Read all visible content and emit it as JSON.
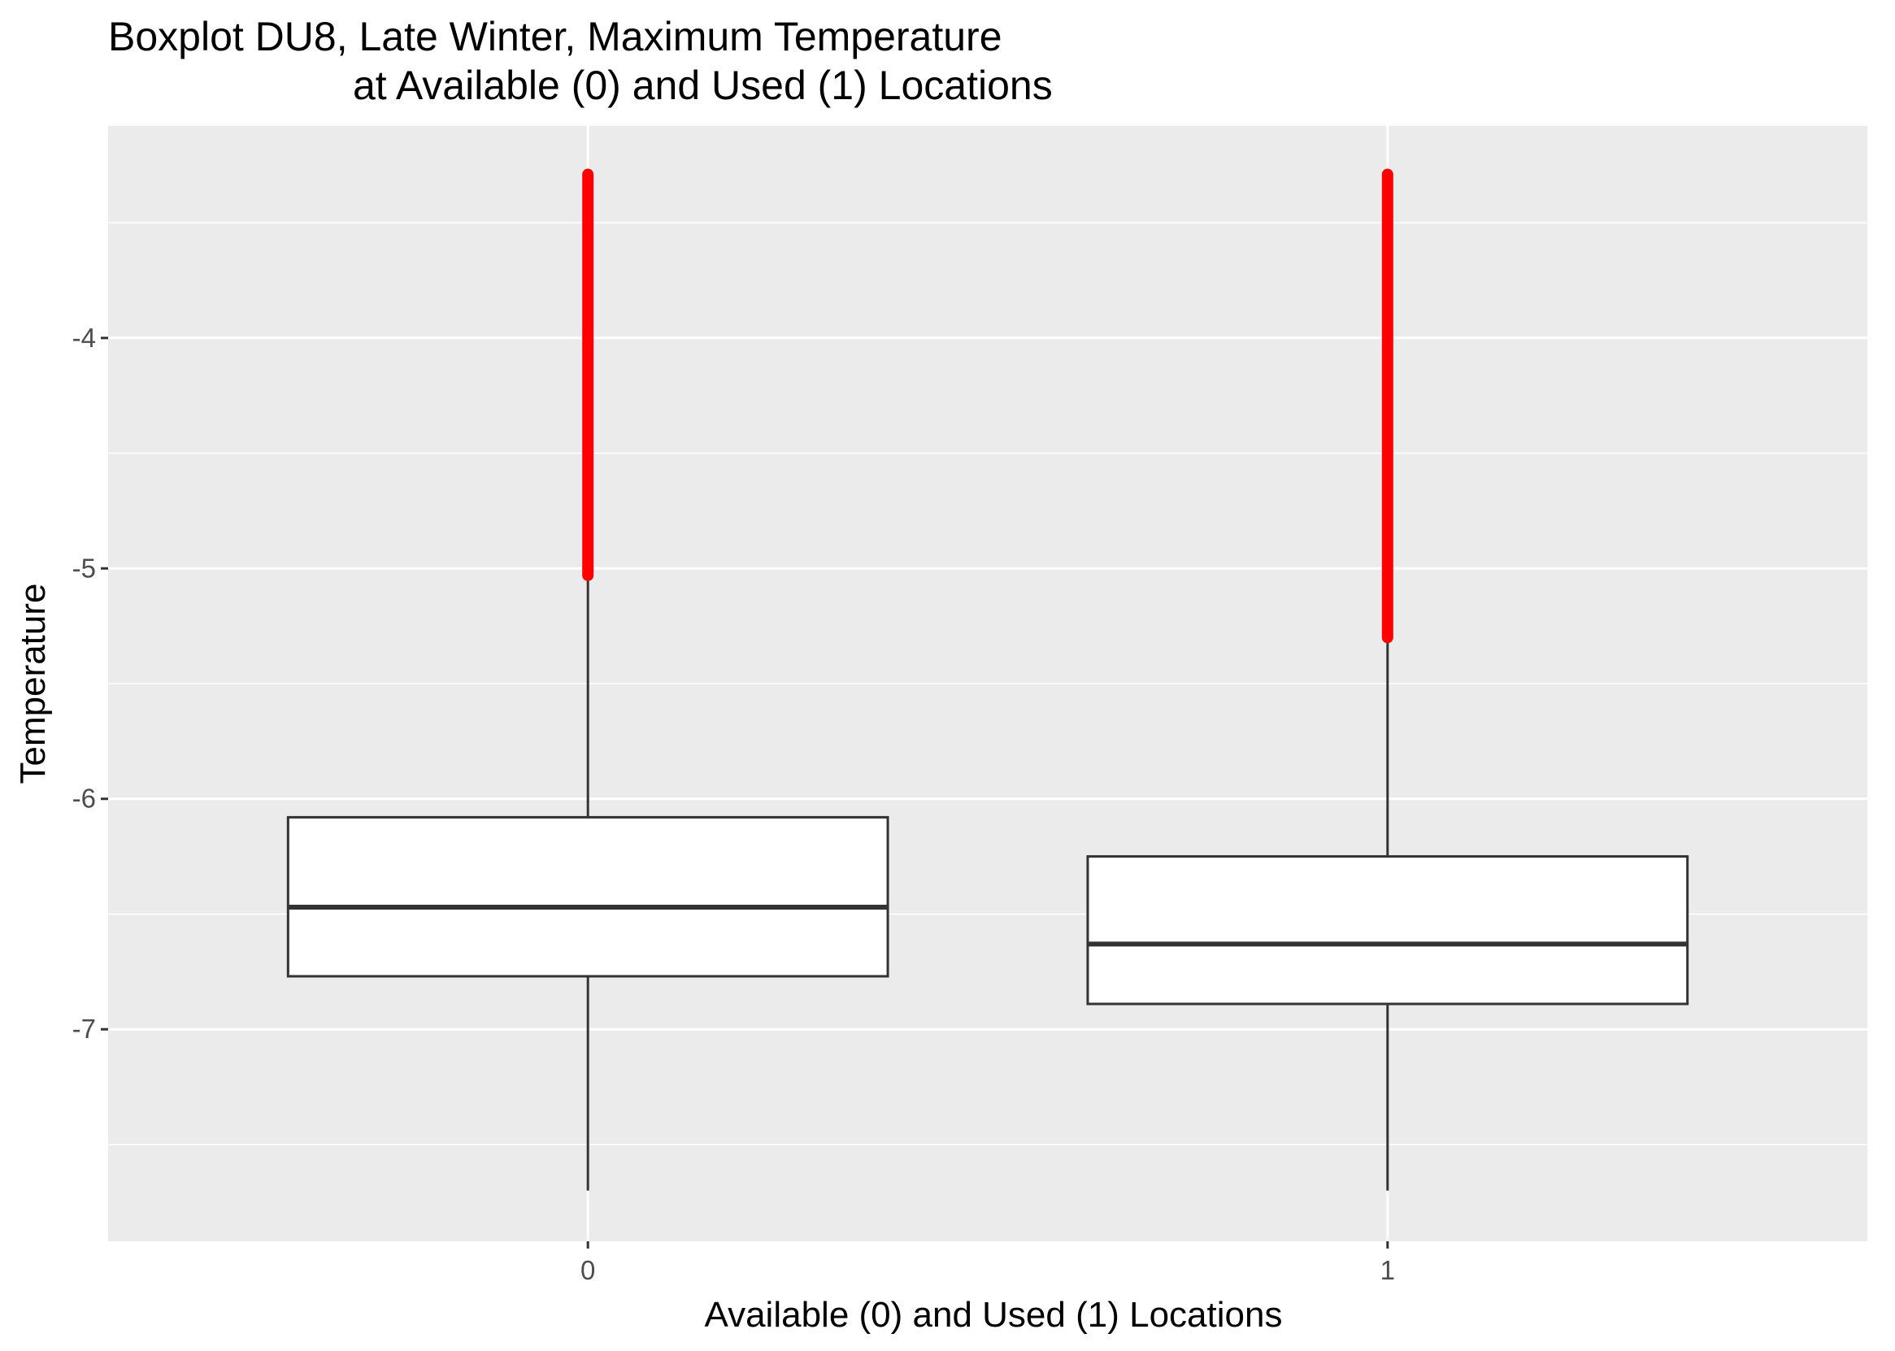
{
  "chart_data": {
    "type": "boxplot",
    "title": "Boxplot DU8, Late Winter, Maximum Temperature",
    "subtitle": "at Available (0) and Used (1) Locations",
    "xlabel": "Available (0) and Used (1) Locations",
    "ylabel": "Temperature",
    "categories": [
      "0",
      "1"
    ],
    "y_ticks": [
      "-4",
      "-5",
      "-6",
      "-7"
    ],
    "ylim": [
      -7.92,
      -3.08
    ],
    "grid": true,
    "panel_color": "#ebebeb",
    "outlier_color": "#ff0000",
    "boxes": [
      {
        "category": "0",
        "whisker_low": -7.7,
        "q1": -6.77,
        "median": -6.47,
        "q3": -6.08,
        "whisker_high": -5.05,
        "outliers_range": [
          -5.03,
          -3.29
        ]
      },
      {
        "category": "1",
        "whisker_low": -7.7,
        "q1": -6.89,
        "median": -6.63,
        "q3": -6.25,
        "whisker_high": -5.32,
        "outliers_range": [
          -5.3,
          -3.29
        ]
      }
    ]
  }
}
